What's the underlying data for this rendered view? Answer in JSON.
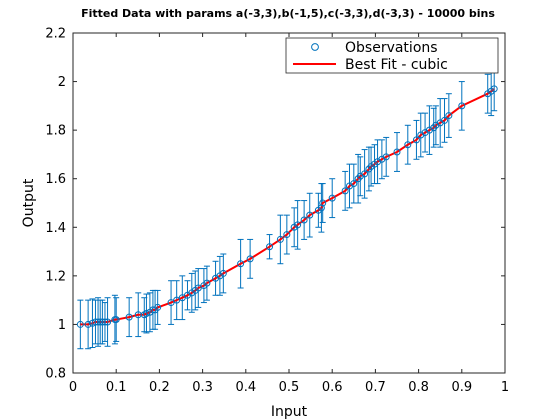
{
  "chart_data": {
    "type": "scatter",
    "title": "Fitted Data with params a(-3,3),b(-1,5),c(-3,3),d(-3,3) - 10000 bins",
    "xlabel": "Input",
    "ylabel": "Output",
    "xlim": [
      0,
      1
    ],
    "ylim": [
      0.8,
      2.2
    ],
    "xticks": [
      "0",
      "0.1",
      "0.2",
      "0.3",
      "0.4",
      "0.5",
      "0.6",
      "0.7",
      "0.8",
      "0.9",
      "1"
    ],
    "yticks": [
      "0.8",
      "1",
      "1.2",
      "1.4",
      "1.6",
      "1.8",
      "2",
      "2.2"
    ],
    "grid": false,
    "legend_position": "top-right",
    "legend": [
      "Observations",
      "Best Fit - cubic"
    ],
    "colors": {
      "observations": "#0072BD",
      "fit": "#FF0000"
    },
    "fit": {
      "model": "cubic",
      "x_range": [
        0.017,
        0.975
      ]
    },
    "series": [
      {
        "name": "Observations",
        "x": [
          0.017,
          0.035,
          0.045,
          0.052,
          0.058,
          0.063,
          0.068,
          0.074,
          0.08,
          0.097,
          0.1,
          0.13,
          0.151,
          0.165,
          0.17,
          0.178,
          0.185,
          0.19,
          0.196,
          0.227,
          0.24,
          0.253,
          0.265,
          0.275,
          0.283,
          0.29,
          0.303,
          0.31,
          0.33,
          0.34,
          0.348,
          0.388,
          0.41,
          0.455,
          0.48,
          0.495,
          0.512,
          0.52,
          0.535,
          0.548,
          0.568,
          0.575,
          0.578,
          0.6,
          0.63,
          0.64,
          0.65,
          0.66,
          0.665,
          0.675,
          0.685,
          0.69,
          0.698,
          0.705,
          0.715,
          0.725,
          0.75,
          0.775,
          0.795,
          0.805,
          0.815,
          0.825,
          0.835,
          0.84,
          0.85,
          0.86,
          0.87,
          0.9,
          0.96,
          0.968,
          0.975
        ],
        "y": [
          1.0,
          1.0,
          1.005,
          1.01,
          1.01,
          1.01,
          1.01,
          1.01,
          1.01,
          1.02,
          1.02,
          1.03,
          1.04,
          1.04,
          1.045,
          1.05,
          1.06,
          1.06,
          1.07,
          1.09,
          1.1,
          1.11,
          1.12,
          1.13,
          1.14,
          1.15,
          1.16,
          1.17,
          1.19,
          1.2,
          1.21,
          1.25,
          1.27,
          1.32,
          1.35,
          1.37,
          1.4,
          1.41,
          1.43,
          1.45,
          1.47,
          1.48,
          1.5,
          1.52,
          1.55,
          1.57,
          1.58,
          1.6,
          1.61,
          1.62,
          1.64,
          1.65,
          1.66,
          1.67,
          1.68,
          1.69,
          1.71,
          1.74,
          1.76,
          1.78,
          1.79,
          1.8,
          1.81,
          1.82,
          1.83,
          1.84,
          1.86,
          1.9,
          1.95,
          1.96,
          1.97
        ],
        "err": [
          0.1,
          0.1,
          0.1,
          0.09,
          0.1,
          0.09,
          0.09,
          0.08,
          0.1,
          0.1,
          0.09,
          0.08,
          0.09,
          0.07,
          0.08,
          0.08,
          0.08,
          0.08,
          0.07,
          0.09,
          0.08,
          0.09,
          0.06,
          0.08,
          0.08,
          0.08,
          0.07,
          0.07,
          0.07,
          0.08,
          0.08,
          0.1,
          0.08,
          0.05,
          0.1,
          0.08,
          0.08,
          0.1,
          0.08,
          0.09,
          0.07,
          0.1,
          0.08,
          0.08,
          0.08,
          0.09,
          0.08,
          0.1,
          0.08,
          0.1,
          0.09,
          0.08,
          0.08,
          0.09,
          0.08,
          0.08,
          0.08,
          0.08,
          0.08,
          0.09,
          0.08,
          0.1,
          0.08,
          0.08,
          0.1,
          0.09,
          0.09,
          0.1,
          0.08,
          0.1,
          0.09
        ]
      }
    ]
  }
}
